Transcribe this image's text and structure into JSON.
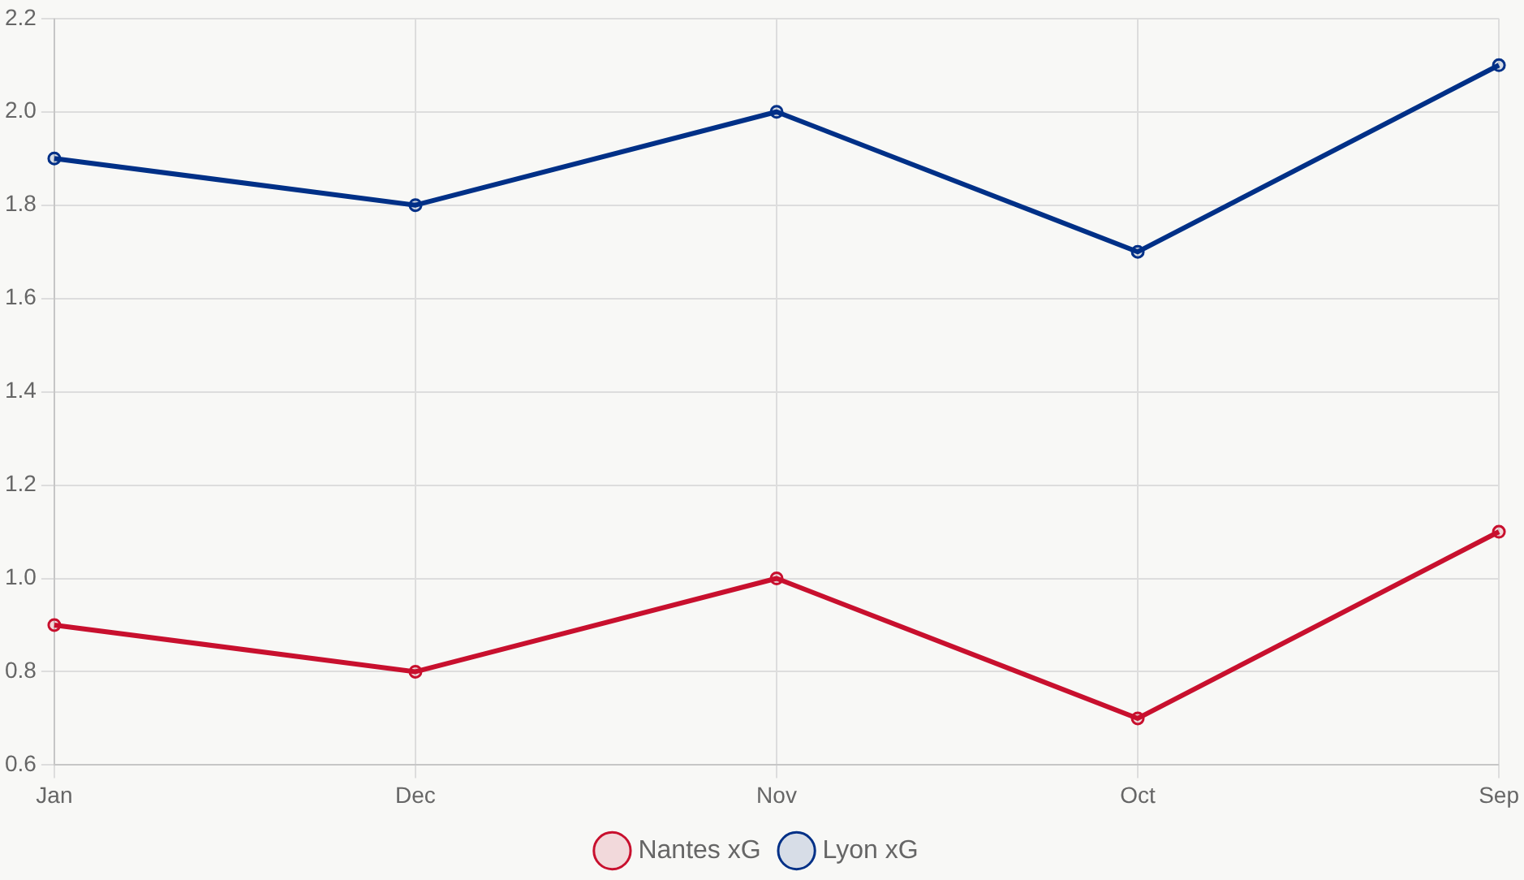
{
  "chart_data": {
    "type": "line",
    "categories": [
      "Jan",
      "Dec",
      "Nov",
      "Oct",
      "Sep"
    ],
    "series": [
      {
        "name": "Nantes xG",
        "color": "#c8102e",
        "values": [
          0.9,
          0.8,
          1.0,
          0.7,
          1.1
        ]
      },
      {
        "name": "Lyon xG",
        "color": "#003087",
        "values": [
          1.9,
          1.8,
          2.0,
          1.7,
          2.1
        ]
      }
    ],
    "ylim": [
      0.6,
      2.2
    ],
    "yticks": [
      0.6,
      0.8,
      {
        "value": 1,
        "label": "1.0"
      },
      1.2,
      1.4,
      1.6,
      1.8,
      {
        "value": 2,
        "label": "2.0"
      },
      2.2
    ],
    "grid": true,
    "legend": "bottom",
    "marker": "circle",
    "line_style": "solid"
  }
}
